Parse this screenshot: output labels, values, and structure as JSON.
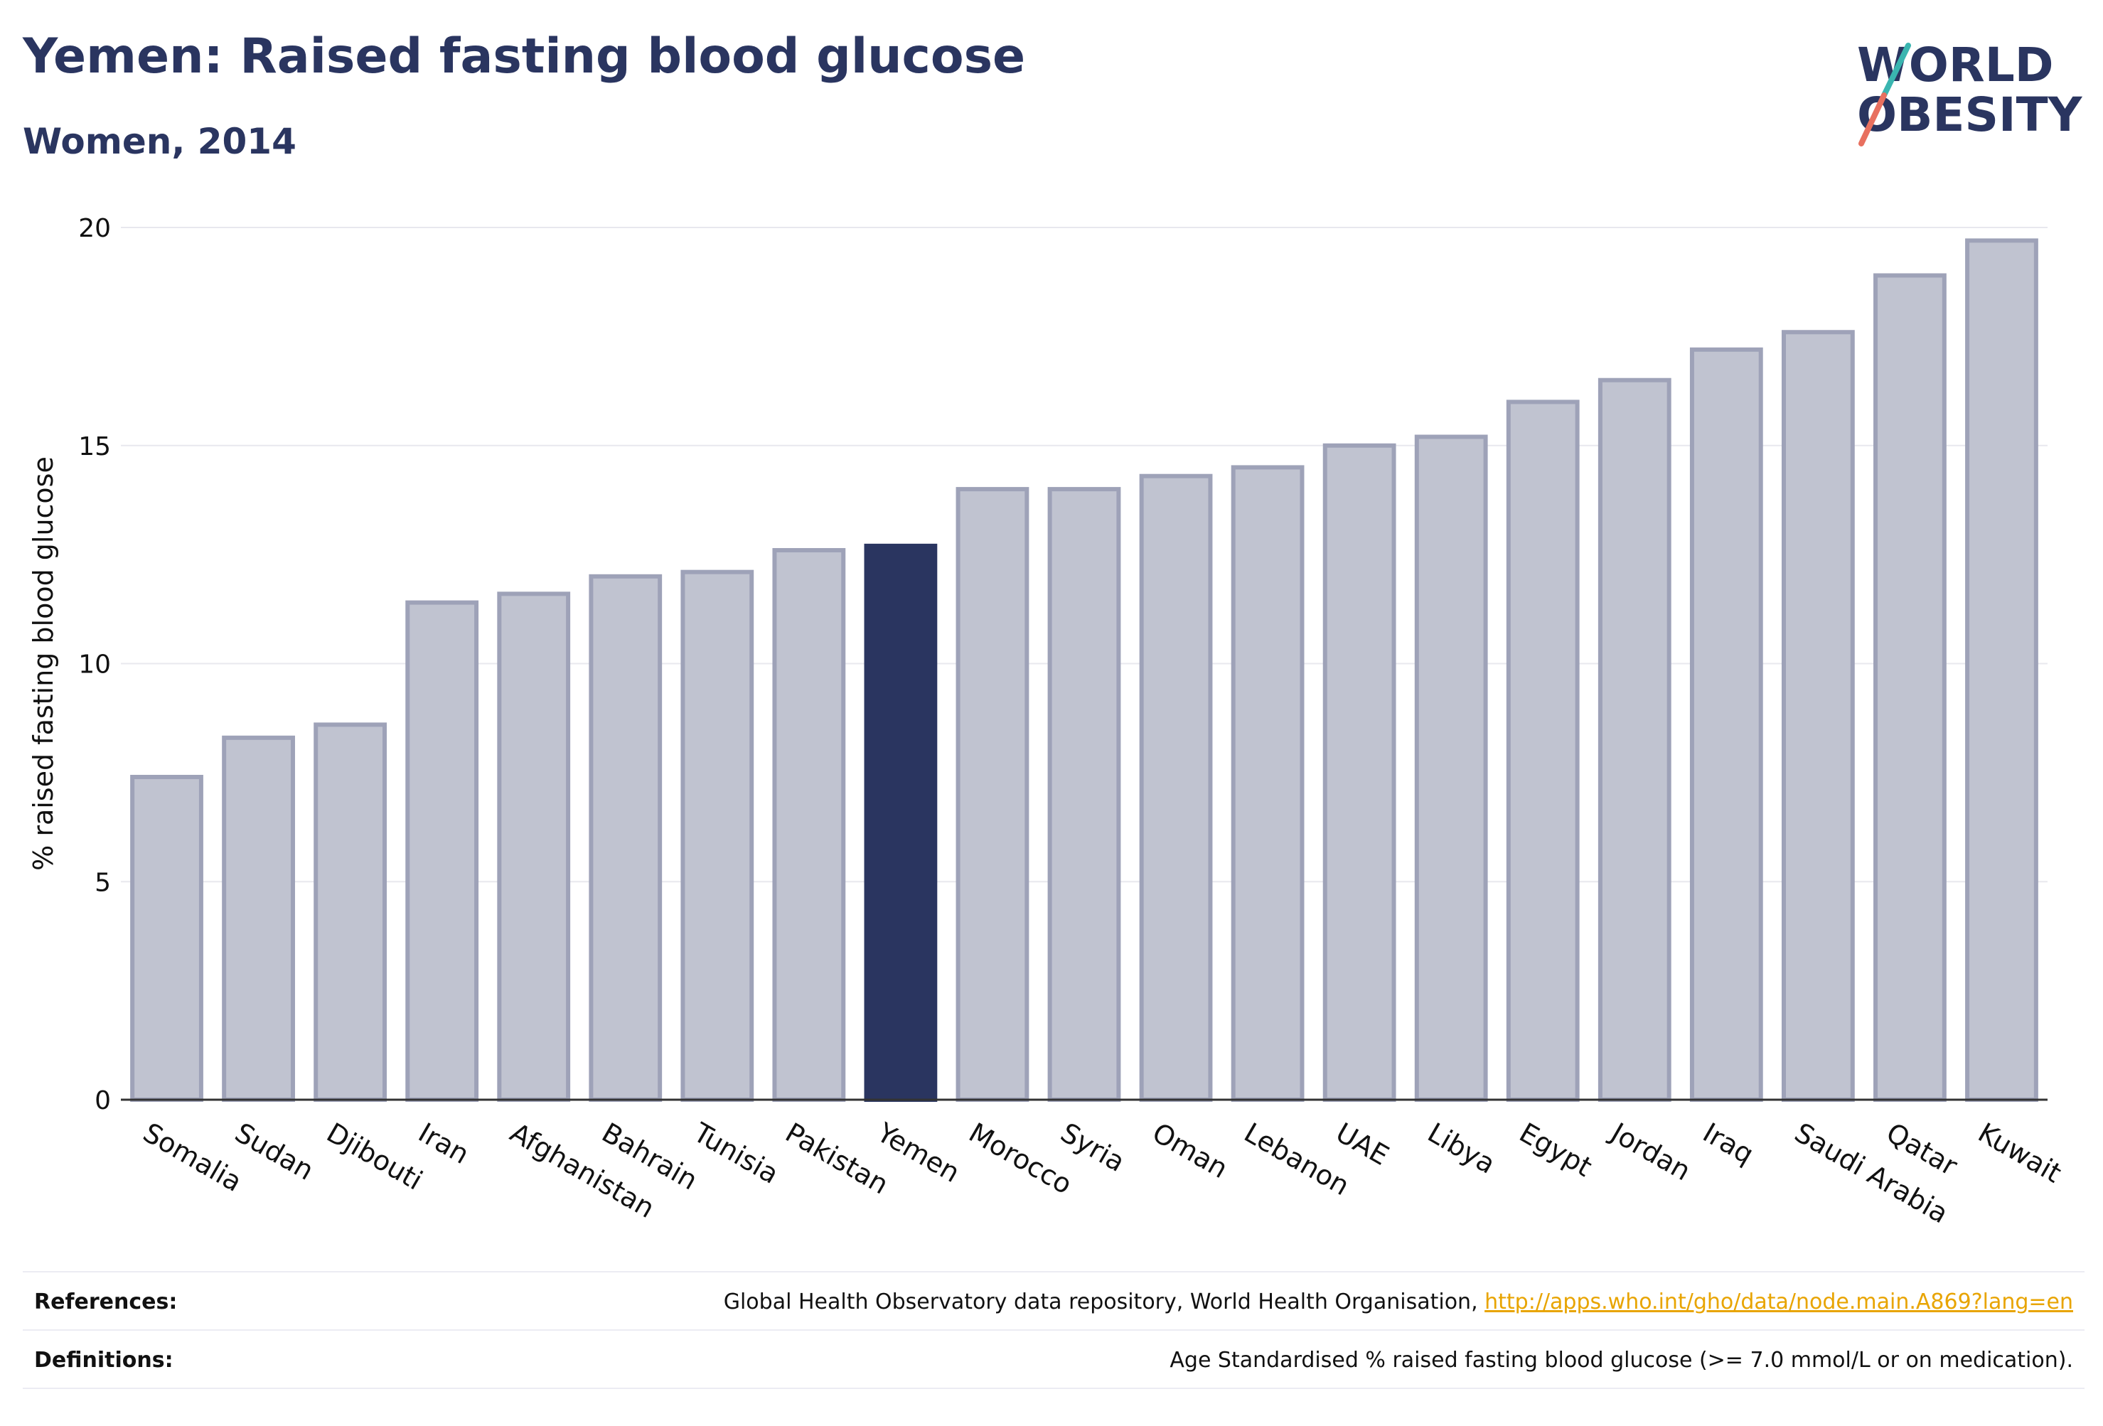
{
  "header": {
    "title": "Yemen: Raised fasting blood glucose",
    "subtitle": "Women, 2014"
  },
  "logo": {
    "line1": "WORLD",
    "line2": "OBESITY",
    "slash_colors": [
      "#3ab5b0",
      "#e8705f"
    ]
  },
  "chart_data": {
    "type": "bar",
    "title": "Yemen: Raised fasting blood glucose",
    "subtitle": "Women, 2014",
    "xlabel": "",
    "ylabel": "% raised fasting blood glucose",
    "ylim": [
      0,
      20
    ],
    "yticks": [
      0,
      5,
      10,
      15,
      20
    ],
    "grid": true,
    "highlight": "Yemen",
    "colors": {
      "bar": "#c0c3d0",
      "bar_edge": "#9ea2b8",
      "highlight": "#2a3560",
      "grid": "#e8e8ee",
      "axis": "#333333"
    },
    "categories": [
      "Somalia",
      "Sudan",
      "Djibouti",
      "Iran",
      "Afghanistan",
      "Bahrain",
      "Tunisia",
      "Pakistan",
      "Yemen",
      "Morocco",
      "Syria",
      "Oman",
      "Lebanon",
      "UAE",
      "Libya",
      "Egypt",
      "Jordan",
      "Iraq",
      "Saudi Arabia",
      "Qatar",
      "Kuwait"
    ],
    "values": [
      7.4,
      8.3,
      8.6,
      11.4,
      11.6,
      12.0,
      12.1,
      12.6,
      12.7,
      14.0,
      14.0,
      14.3,
      14.5,
      15.0,
      15.2,
      16.0,
      16.5,
      17.2,
      17.6,
      18.9,
      19.7
    ]
  },
  "footer": {
    "references_label": "References:",
    "references_text": "Global Health Observatory data repository, World Health Organisation, ",
    "references_link": "http://apps.who.int/gho/data/node.main.A869?lang=en",
    "definitions_label": "Definitions:",
    "definitions_text": "Age Standardised % raised fasting blood glucose (>= 7.0 mmol/L or on medication)."
  }
}
